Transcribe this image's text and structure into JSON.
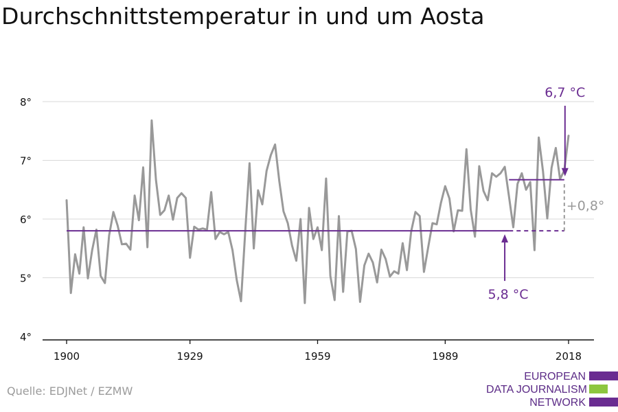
{
  "title": "Durchschnittstemperatur in und um Aosta",
  "source": "Quelle: EDJNet / EZMW",
  "logo": {
    "lines": [
      "EUROPEAN",
      "DATA JOURNALISM",
      "NETWORK"
    ],
    "colors": {
      "purple": "#6a2c91",
      "green": "#8dc63f"
    }
  },
  "colors": {
    "series": "#999999",
    "reference": "#6a2c91",
    "diff": "#999999",
    "grid": "#d9d9d9",
    "axis": "#111111"
  },
  "chart_data": {
    "type": "line",
    "title": "Durchschnittstemperatur in und um Aosta",
    "xlabel": "",
    "ylabel": "",
    "xlim": [
      1900,
      2018
    ],
    "ylim": [
      4,
      8
    ],
    "y_ticks": [
      4,
      5,
      6,
      7,
      8
    ],
    "y_tick_labels": [
      "4°",
      "5°",
      "6°",
      "7°",
      "8°"
    ],
    "x_ticks": [
      1900,
      1929,
      1959,
      1989,
      2018
    ],
    "x_tick_labels": [
      "1900",
      "1929",
      "1959",
      "1989",
      "2018"
    ],
    "grid": true,
    "series": [
      {
        "years": [
          1900,
          1901,
          1902,
          1903,
          1904,
          1905,
          1906,
          1907,
          1908,
          1909,
          1910,
          1911,
          1912,
          1913,
          1914,
          1915,
          1916,
          1917,
          1918,
          1919,
          1920,
          1921,
          1922,
          1923,
          1924,
          1925,
          1926,
          1927,
          1928,
          1929,
          1930,
          1931,
          1932,
          1933,
          1934,
          1935,
          1936,
          1937,
          1938,
          1939,
          1940,
          1941,
          1942,
          1943,
          1944,
          1945,
          1946,
          1947,
          1948,
          1949,
          1950,
          1951,
          1952,
          1953,
          1954,
          1955,
          1956,
          1957,
          1958,
          1959,
          1960,
          1961,
          1962,
          1963,
          1964,
          1965,
          1966,
          1967,
          1968,
          1969,
          1970,
          1971,
          1972,
          1973,
          1974,
          1975,
          1976,
          1977,
          1978,
          1979,
          1980,
          1981,
          1982,
          1983,
          1984,
          1985,
          1986,
          1987,
          1988,
          1989,
          1990,
          1991,
          1992,
          1993,
          1994,
          1995,
          1996,
          1997,
          1998,
          1999,
          2000,
          2001,
          2002,
          2003,
          2004,
          2005,
          2006,
          2007,
          2008,
          2009,
          2010,
          2011,
          2012,
          2013,
          2014,
          2015,
          2016,
          2017,
          2018
        ],
        "values": [
          6.32,
          4.74,
          5.4,
          5.07,
          5.86,
          4.99,
          5.47,
          5.82,
          5.03,
          4.91,
          5.72,
          6.12,
          5.89,
          5.57,
          5.58,
          5.48,
          6.4,
          5.98,
          6.88,
          5.52,
          7.68,
          6.67,
          6.07,
          6.15,
          6.4,
          5.99,
          6.36,
          6.44,
          6.36,
          5.34,
          5.87,
          5.82,
          5.84,
          5.82,
          6.46,
          5.66,
          5.78,
          5.74,
          5.78,
          5.47,
          4.96,
          4.6,
          5.8,
          6.95,
          5.5,
          6.49,
          6.25,
          6.82,
          7.09,
          7.27,
          6.65,
          6.13,
          5.93,
          5.55,
          5.29,
          6.0,
          4.57,
          6.19,
          5.66,
          5.86,
          5.47,
          6.69,
          5.03,
          4.62,
          6.05,
          4.76,
          5.79,
          5.8,
          5.49,
          4.59,
          5.21,
          5.41,
          5.26,
          4.92,
          5.48,
          5.32,
          5.02,
          5.11,
          5.07,
          5.59,
          5.13,
          5.79,
          6.12,
          6.05,
          5.1,
          5.52,
          5.93,
          5.91,
          6.28,
          6.56,
          6.35,
          5.79,
          6.15,
          6.14,
          7.19,
          6.16,
          5.7,
          6.9,
          6.48,
          6.32,
          6.78,
          6.72,
          6.78,
          6.89,
          6.38,
          5.86,
          6.6,
          6.78,
          6.5,
          6.63,
          5.47,
          7.39,
          6.81,
          6.01,
          6.87,
          7.21,
          6.68,
          6.83,
          7.42
        ]
      }
    ],
    "reference_lines": [
      {
        "label": "5,8 °C",
        "value": 5.8,
        "from": 1900,
        "to": 2004,
        "dashed_to": 2017
      },
      {
        "label": "6,7 °C",
        "value": 6.67,
        "from": 2004,
        "to": 2017
      }
    ],
    "difference_annotation": {
      "label": "+0,8°",
      "year": 2017,
      "from": 5.8,
      "to": 6.67
    },
    "arrows": [
      {
        "target": "5,8 °C",
        "year": 2003
      },
      {
        "target": "6,7 °C",
        "year": 2017
      }
    ]
  }
}
